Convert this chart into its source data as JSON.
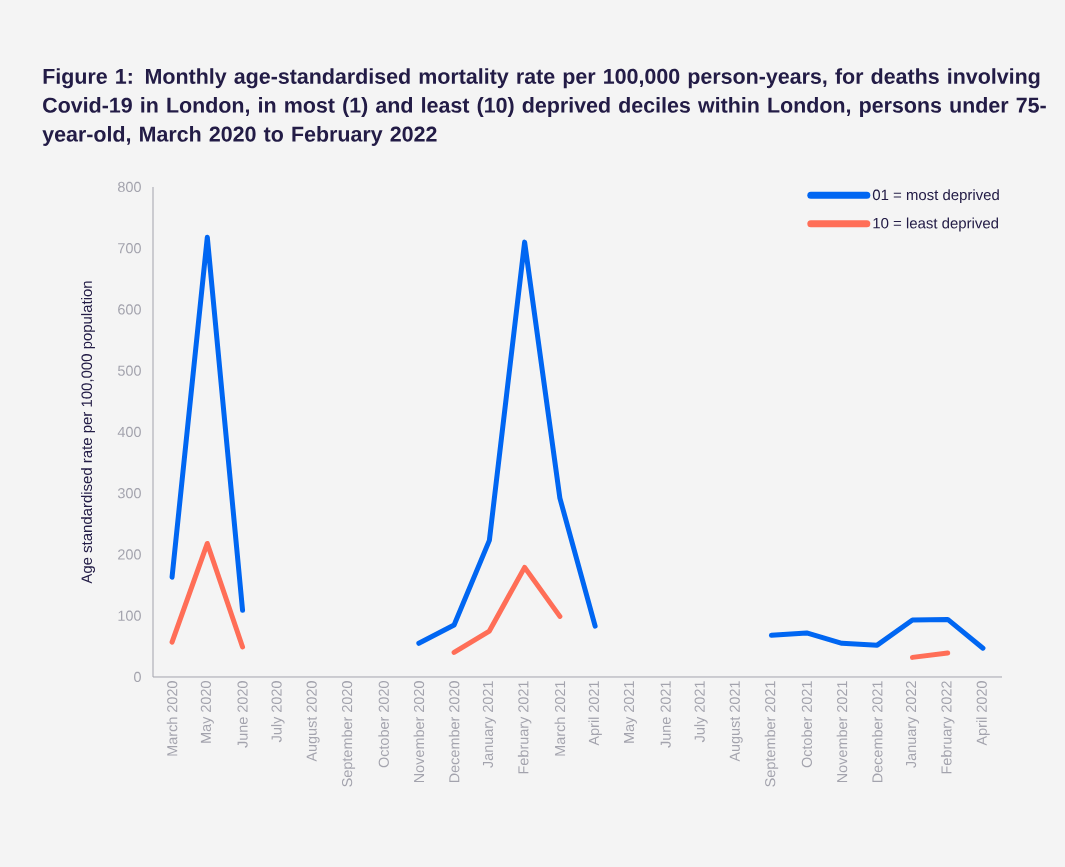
{
  "chart_data": {
    "type": "line",
    "title": "Figure 1: Monthly age-standardised mortality rate per 100,000 person-years, for deaths involving Covid-19 in London, in most (1) and least (10) deprived deciles within London, persons under 75-year-old, March 2020 to February 2022",
    "ylabel": "Age standardised rate per 100,000 population",
    "categories": [
      "March 2020",
      "May 2020",
      "June 2020",
      "July 2020",
      "August 2020",
      "September 2020",
      "October 2020",
      "November 2020",
      "December 2020",
      "January 2021",
      "February 2021",
      "March 2021",
      "April 2021",
      "May 2021",
      "June 2021",
      "July 2021",
      "August 2021",
      "September 2021",
      "October 2021",
      "November 2021",
      "December 2021",
      "January 2022",
      "February 2022",
      "April 2020"
    ],
    "series": [
      {
        "name": "01 = most deprived",
        "color": "#0066f2",
        "values": [
          163,
          718,
          109,
          null,
          null,
          null,
          null,
          55,
          85,
          223,
          710,
          292,
          83,
          null,
          null,
          null,
          null,
          68,
          72,
          55,
          52,
          93,
          94,
          47
        ]
      },
      {
        "name": "10 = least deprived",
        "color": "#ff6e57",
        "values": [
          57,
          218,
          49,
          null,
          null,
          null,
          null,
          null,
          40,
          75,
          179,
          99,
          null,
          null,
          null,
          null,
          null,
          null,
          null,
          null,
          null,
          32,
          39,
          null
        ]
      }
    ],
    "ylim": [
      0,
      800
    ],
    "yticks": [
      0,
      100,
      200,
      300,
      400,
      500,
      600,
      700,
      800
    ],
    "grid": false,
    "legend": "top right",
    "marker": "none",
    "line_style": "solid"
  }
}
